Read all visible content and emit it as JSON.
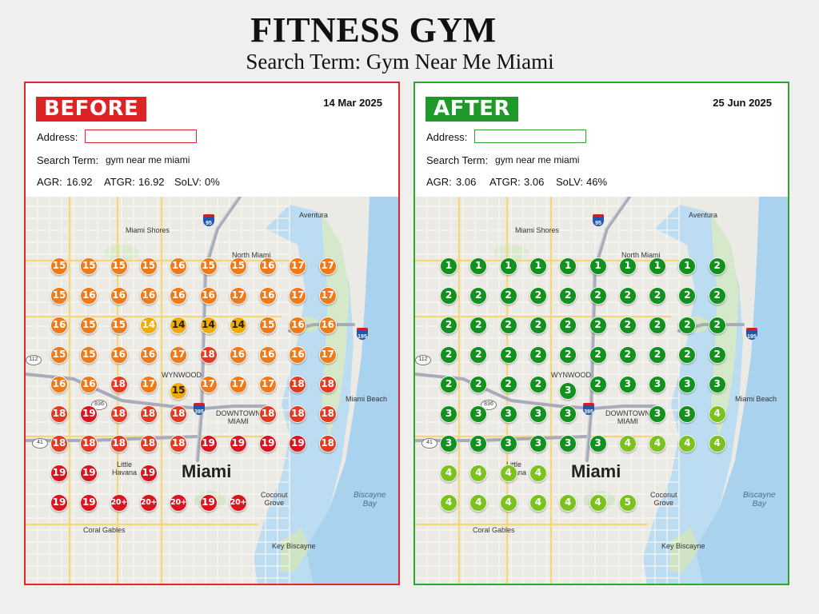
{
  "title": "FITNESS GYM",
  "subtitle": "Search Term: Gym Near Me Miami",
  "colors": {
    "before_border": "#e0282b",
    "after_border": "#2fa52e",
    "rank_1_3": "#12911f",
    "rank_4_5": "#7cc21e",
    "rank_14_15": "#f2a90c",
    "rank_15_17": "#ef7a1a",
    "rank_18_19": "#e33b22",
    "rank_19_20plus": "#d9151f"
  },
  "map_labels": {
    "miami_shores": "Miami Shores",
    "aventura": "Aventura",
    "north_miami": "North Miami",
    "wynwood": "WYNWOOD",
    "downtown": "DOWNTOWN\nMIAMI",
    "miami_beach": "Miami Beach",
    "little_havana": "Little\nHavana",
    "miami": "Miami",
    "coconut_grove": "Coconut\nGrove",
    "biscayne_bay": "Biscayne\nBay",
    "coral_gables": "Coral Gables",
    "key_biscayne": "Key Biscayne",
    "i95": "95",
    "i195": "195",
    "i395": "395",
    "r836": "836",
    "r112": "112",
    "us41": "41"
  },
  "panels": [
    {
      "id": "before",
      "badge": "BEFORE",
      "date": "14 Mar 2025",
      "address_label": "Address:",
      "address_value": "",
      "search_label": "Search Term:",
      "search_value": "gym near me miami",
      "agr_label": "AGR:",
      "agr_value": "16.92",
      "atgr_label": "ATGR:",
      "atgr_value": "16.92",
      "solv_label": "SoLV:",
      "solv_value": "0%",
      "grid": [
        [
          "15",
          "15",
          "15",
          "15",
          "16",
          "15",
          "15",
          "16",
          "17",
          "17"
        ],
        [
          "15",
          "16",
          "16",
          "16",
          "16",
          "16",
          "17",
          "16",
          "17",
          "17"
        ],
        [
          "16",
          "15",
          "15",
          "14",
          "14",
          "14",
          "14",
          "15",
          "16",
          "16"
        ],
        [
          "15",
          "15",
          "16",
          "16",
          "17",
          "18",
          "16",
          "16",
          "16",
          "17"
        ],
        [
          "16",
          "16",
          "18",
          "17",
          "15",
          "17",
          "17",
          "17",
          "18",
          "18"
        ],
        [
          "18",
          "19",
          "18",
          "18",
          "18",
          "",
          "",
          "18",
          "18",
          "18"
        ],
        [
          "18",
          "18",
          "18",
          "18",
          "18",
          "19",
          "19",
          "19",
          "19",
          "18"
        ],
        [
          "19",
          "19",
          "",
          "19",
          "",
          "",
          "",
          "",
          "",
          ""
        ],
        [
          "19",
          "19",
          "20+",
          "20+",
          "20+",
          "19",
          "20+",
          "",
          "",
          ""
        ]
      ]
    },
    {
      "id": "after",
      "badge": "AFTER",
      "date": "25 Jun 2025",
      "address_label": "Address:",
      "address_value": "",
      "search_label": "Search Term:",
      "search_value": "gym near me miami",
      "agr_label": "AGR:",
      "agr_value": "3.06",
      "atgr_label": "ATGR:",
      "atgr_value": "3.06",
      "solv_label": "SoLV:",
      "solv_value": "46%",
      "grid": [
        [
          "1",
          "1",
          "1",
          "1",
          "1",
          "1",
          "1",
          "1",
          "1",
          "2"
        ],
        [
          "2",
          "2",
          "2",
          "2",
          "2",
          "2",
          "2",
          "2",
          "2",
          "2"
        ],
        [
          "2",
          "2",
          "2",
          "2",
          "2",
          "2",
          "2",
          "2",
          "2",
          "2"
        ],
        [
          "2",
          "2",
          "2",
          "2",
          "2",
          "2",
          "2",
          "2",
          "2",
          "2"
        ],
        [
          "2",
          "2",
          "2",
          "2",
          "3",
          "2",
          "3",
          "3",
          "3",
          "3"
        ],
        [
          "3",
          "3",
          "3",
          "3",
          "3",
          "",
          "",
          "3",
          "3",
          "4"
        ],
        [
          "3",
          "3",
          "3",
          "3",
          "3",
          "3",
          "4",
          "4",
          "4",
          "4"
        ],
        [
          "4",
          "4",
          "4",
          "4",
          "",
          "",
          "",
          "",
          "",
          ""
        ],
        [
          "4",
          "4",
          "4",
          "4",
          "4",
          "4",
          "5",
          "",
          "",
          ""
        ]
      ]
    }
  ]
}
